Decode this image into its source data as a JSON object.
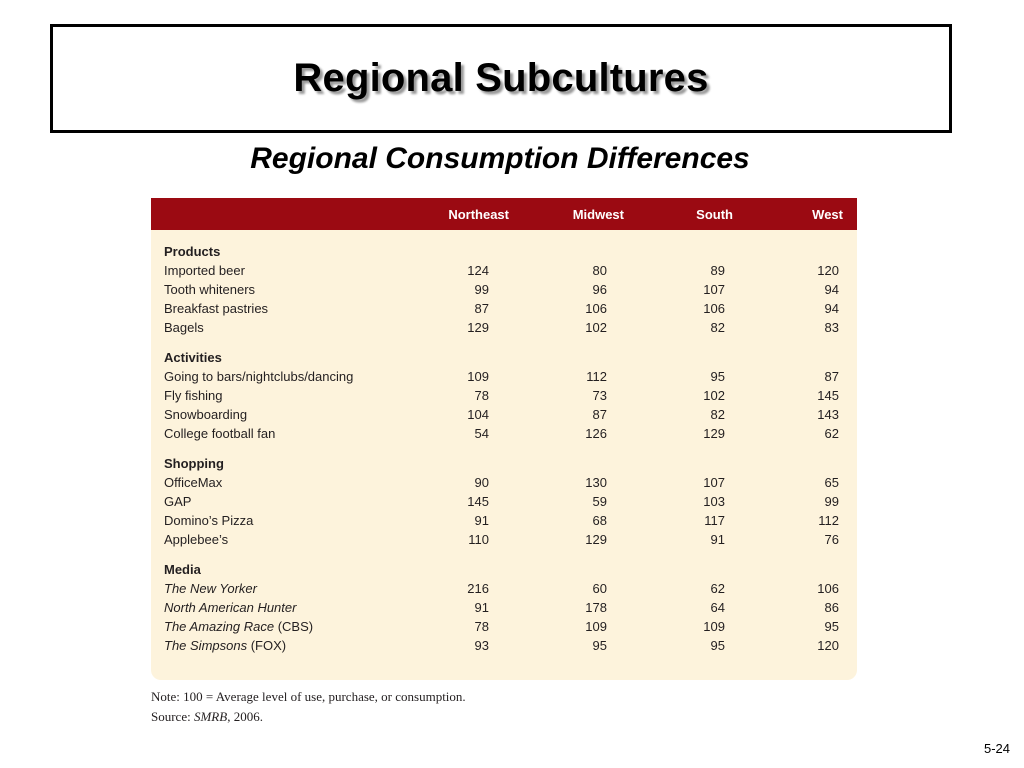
{
  "slide": {
    "title": "Regional Subcultures",
    "subtitle": "Regional Consumption Differences",
    "page_number": "5-24"
  },
  "table": {
    "columns": [
      "Northeast",
      "Midwest",
      "South",
      "West"
    ],
    "sections": [
      {
        "title": "Products",
        "rows": [
          {
            "label": "Imported beer",
            "label_italic": "",
            "values": [
              "124",
              "80",
              "89",
              "120"
            ]
          },
          {
            "label": "Tooth whiteners",
            "label_italic": "",
            "values": [
              "99",
              "96",
              "107",
              "94"
            ]
          },
          {
            "label": "Breakfast pastries",
            "label_italic": "",
            "values": [
              "87",
              "106",
              "106",
              "94"
            ]
          },
          {
            "label": "Bagels",
            "label_italic": "",
            "values": [
              "129",
              "102",
              "82",
              "83"
            ]
          }
        ]
      },
      {
        "title": "Activities",
        "rows": [
          {
            "label": "Going to bars/nightclubs/dancing",
            "label_italic": "",
            "values": [
              "109",
              "112",
              "95",
              "87"
            ]
          },
          {
            "label": "Fly fishing",
            "label_italic": "",
            "values": [
              "78",
              "73",
              "102",
              "145"
            ]
          },
          {
            "label": "Snowboarding",
            "label_italic": "",
            "values": [
              "104",
              "87",
              "82",
              "143"
            ]
          },
          {
            "label": "College football fan",
            "label_italic": "",
            "values": [
              "54",
              "126",
              "129",
              "62"
            ]
          }
        ]
      },
      {
        "title": "Shopping",
        "rows": [
          {
            "label": "OfficeMax",
            "label_italic": "",
            "values": [
              "90",
              "130",
              "107",
              "65"
            ]
          },
          {
            "label": "GAP",
            "label_italic": "",
            "values": [
              "145",
              "59",
              "103",
              "99"
            ]
          },
          {
            "label": "Domino’s Pizza",
            "label_italic": "",
            "values": [
              "91",
              "68",
              "117",
              "112"
            ]
          },
          {
            "label": "Applebee’s",
            "label_italic": "",
            "values": [
              "110",
              "129",
              "91",
              "76"
            ]
          }
        ]
      },
      {
        "title": "Media",
        "rows": [
          {
            "label": "",
            "label_italic": "The New Yorker",
            "values": [
              "216",
              "60",
              "62",
              "106"
            ]
          },
          {
            "label": "",
            "label_italic": "North American Hunter",
            "values": [
              "91",
              "178",
              "64",
              "86"
            ]
          },
          {
            "label": " (CBS)",
            "label_italic": "The Amazing Race",
            "values": [
              "78",
              "109",
              "109",
              "95"
            ]
          },
          {
            "label": " (FOX)",
            "label_italic": "The Simpsons",
            "values": [
              "93",
              "95",
              "95",
              "120"
            ]
          }
        ]
      }
    ]
  },
  "notes": {
    "note_line": "Note: 100 = Average level of use, purchase, or consumption.",
    "source_prefix": "Source: ",
    "source_italic": "SMRB",
    "source_suffix": ", 2006."
  }
}
